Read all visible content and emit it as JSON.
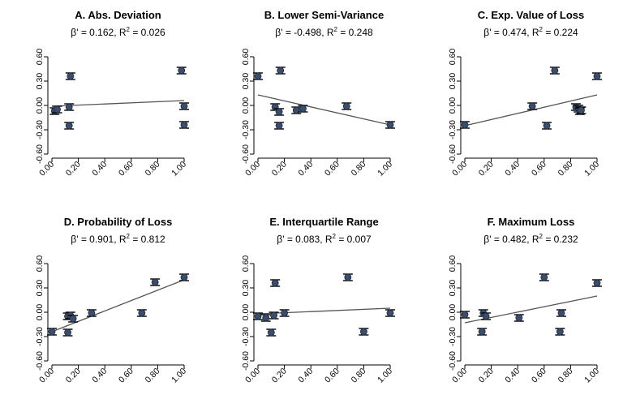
{
  "chart_data": [
    {
      "type": "scatter",
      "title": "A. Abs. Deviation",
      "subtitle": {
        "prefix": "β' = 0.162, R",
        "sup": "2",
        "suffix": " = 0.026"
      },
      "xlim": [
        0,
        1
      ],
      "ylim": [
        -0.6,
        0.6
      ],
      "xticks": [
        "0.00",
        "0.20",
        "0.40",
        "0.60",
        "0.80",
        "1.00"
      ],
      "yticks": [
        "-0.60",
        "-0.30",
        "0.00",
        "0.30",
        "0.60"
      ],
      "points": [
        {
          "x": 0.02,
          "y": -0.07
        },
        {
          "x": 0.04,
          "y": -0.05
        },
        {
          "x": 0.13,
          "y": -0.25
        },
        {
          "x": 0.13,
          "y": -0.02
        },
        {
          "x": 0.14,
          "y": 0.36
        },
        {
          "x": 0.98,
          "y": 0.43
        },
        {
          "x": 1.0,
          "y": -0.01
        },
        {
          "x": 1.0,
          "y": -0.24
        }
      ],
      "error": 0.04,
      "fit": {
        "x": [
          0,
          1
        ],
        "y": [
          -0.01,
          0.06
        ]
      }
    },
    {
      "type": "scatter",
      "title": "B. Lower Semi-Variance",
      "subtitle": {
        "prefix": "β' = -0.498, R",
        "sup": "2",
        "suffix": " = 0.248"
      },
      "xlim": [
        0,
        1
      ],
      "ylim": [
        -0.6,
        0.6
      ],
      "xticks": [
        "0.00",
        "0.20",
        "0.40",
        "0.60",
        "0.80",
        "1.00"
      ],
      "yticks": [
        "-0.60",
        "-0.30",
        "0.00",
        "0.30",
        "0.60"
      ],
      "points": [
        {
          "x": 0.0,
          "y": 0.36
        },
        {
          "x": 0.13,
          "y": -0.02
        },
        {
          "x": 0.16,
          "y": -0.08
        },
        {
          "x": 0.16,
          "y": -0.25
        },
        {
          "x": 0.17,
          "y": 0.43
        },
        {
          "x": 0.29,
          "y": -0.06
        },
        {
          "x": 0.34,
          "y": -0.04
        },
        {
          "x": 0.67,
          "y": -0.01
        },
        {
          "x": 1.0,
          "y": -0.24
        }
      ],
      "error": 0.04,
      "fit": {
        "x": [
          0,
          1
        ],
        "y": [
          0.13,
          -0.24
        ]
      }
    },
    {
      "type": "scatter",
      "title": "C. Exp. Value of Loss",
      "subtitle": {
        "prefix": "β' = 0.474, R",
        "sup": "2",
        "suffix": " = 0.224"
      },
      "xlim": [
        0,
        1
      ],
      "ylim": [
        -0.6,
        0.6
      ],
      "xticks": [
        "0.00",
        "0.20",
        "0.40",
        "0.60",
        "0.80",
        "1.00"
      ],
      "yticks": [
        "-0.60",
        "-0.30",
        "0.00",
        "0.30",
        "0.60"
      ],
      "points": [
        {
          "x": 0.0,
          "y": -0.24
        },
        {
          "x": 0.51,
          "y": -0.01
        },
        {
          "x": 0.62,
          "y": -0.25
        },
        {
          "x": 0.68,
          "y": 0.43
        },
        {
          "x": 0.84,
          "y": -0.02
        },
        {
          "x": 0.86,
          "y": -0.04
        },
        {
          "x": 0.87,
          "y": -0.07
        },
        {
          "x": 0.88,
          "y": -0.06
        },
        {
          "x": 1.0,
          "y": 0.36
        }
      ],
      "error": 0.04,
      "fit": {
        "x": [
          0,
          1
        ],
        "y": [
          -0.25,
          0.13
        ]
      }
    },
    {
      "type": "scatter",
      "title": "D. Probability of Loss",
      "subtitle": {
        "prefix": "β' = 0.901, R",
        "sup": "2",
        "suffix": " = 0.812"
      },
      "xlim": [
        0,
        1
      ],
      "ylim": [
        -0.6,
        0.6
      ],
      "xticks": [
        "0.00",
        "0.20",
        "0.40",
        "0.60",
        "0.80",
        "1.00"
      ],
      "yticks": [
        "-0.60",
        "-0.30",
        "0.00",
        "0.30",
        "0.60"
      ],
      "points": [
        {
          "x": 0.0,
          "y": -0.24
        },
        {
          "x": 0.12,
          "y": -0.25
        },
        {
          "x": 0.12,
          "y": -0.05
        },
        {
          "x": 0.14,
          "y": -0.04
        },
        {
          "x": 0.16,
          "y": -0.08
        },
        {
          "x": 0.3,
          "y": -0.01
        },
        {
          "x": 0.68,
          "y": -0.01
        },
        {
          "x": 0.78,
          "y": 0.37
        },
        {
          "x": 1.0,
          "y": 0.43
        }
      ],
      "error": 0.04,
      "fit": {
        "x": [
          0,
          1
        ],
        "y": [
          -0.24,
          0.4
        ]
      }
    },
    {
      "type": "scatter",
      "title": "E. Interquartile Range",
      "subtitle": {
        "prefix": "β' = 0.083, R",
        "sup": "2",
        "suffix": " = 0.007"
      },
      "xlim": [
        0,
        1
      ],
      "ylim": [
        -0.6,
        0.6
      ],
      "xticks": [
        "0.00",
        "0.20",
        "0.40",
        "0.60",
        "0.80",
        "1.00"
      ],
      "yticks": [
        "-0.60",
        "-0.30",
        "0.00",
        "0.30",
        "0.60"
      ],
      "points": [
        {
          "x": 0.0,
          "y": -0.05
        },
        {
          "x": 0.06,
          "y": -0.07
        },
        {
          "x": 0.1,
          "y": -0.25
        },
        {
          "x": 0.12,
          "y": -0.04
        },
        {
          "x": 0.13,
          "y": 0.36
        },
        {
          "x": 0.2,
          "y": -0.01
        },
        {
          "x": 0.68,
          "y": 0.43
        },
        {
          "x": 0.8,
          "y": -0.24
        },
        {
          "x": 1.0,
          "y": -0.01
        }
      ],
      "error": 0.04,
      "fit": {
        "x": [
          0,
          1
        ],
        "y": [
          -0.02,
          0.05
        ]
      }
    },
    {
      "type": "scatter",
      "title": "F. Maximum Loss",
      "subtitle": {
        "prefix": "β' = 0.482, R",
        "sup": "2",
        "suffix": " = 0.232"
      },
      "xlim": [
        0,
        1
      ],
      "ylim": [
        -0.6,
        0.6
      ],
      "xticks": [
        "0.00",
        "0.20",
        "0.40",
        "0.60",
        "0.80",
        "1.00"
      ],
      "yticks": [
        "-0.60",
        "-0.30",
        "0.00",
        "0.30",
        "0.60"
      ],
      "points": [
        {
          "x": 0.0,
          "y": -0.03
        },
        {
          "x": 0.13,
          "y": -0.24
        },
        {
          "x": 0.14,
          "y": -0.01
        },
        {
          "x": 0.16,
          "y": -0.05
        },
        {
          "x": 0.41,
          "y": -0.07
        },
        {
          "x": 0.6,
          "y": 0.43
        },
        {
          "x": 0.72,
          "y": -0.24
        },
        {
          "x": 0.73,
          "y": -0.01
        },
        {
          "x": 1.0,
          "y": 0.36
        }
      ],
      "error": 0.04,
      "fit": {
        "x": [
          0,
          1
        ],
        "y": [
          -0.13,
          0.2
        ]
      }
    }
  ],
  "style": {
    "point_color": "#3c4d6b",
    "point_edge": "#1e2a3f",
    "fit_color": "#555555",
    "axis_color": "#000000"
  }
}
